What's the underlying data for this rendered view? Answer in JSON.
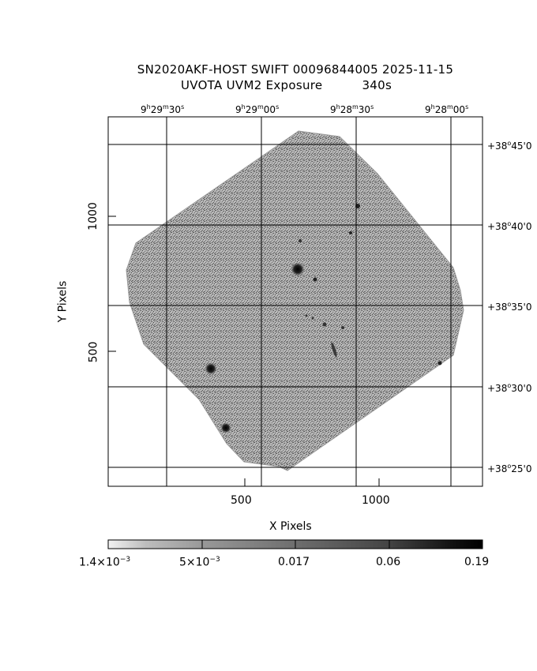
{
  "title": {
    "line1": "SN2020AKF-HOST SWIFT 00096844005 2025-11-15",
    "line2_left": "UVOTA UVM2 Exposure",
    "line2_right": "340s"
  },
  "axes": {
    "xlabel": "X Pixels",
    "ylabel": "Y Pixels",
    "x_ticks": [
      "500",
      "1000"
    ],
    "y_ticks": [
      "1000",
      "500"
    ]
  },
  "wcs": {
    "ra_labels": [
      {
        "h": "9",
        "hs": "h",
        "m": "29",
        "ms": "m",
        "s": "30",
        "ss": "s"
      },
      {
        "h": "9",
        "hs": "h",
        "m": "29",
        "ms": "m",
        "s": "00",
        "ss": "s"
      },
      {
        "h": "9",
        "hs": "h",
        "m": "28",
        "ms": "m",
        "s": "30",
        "ss": "s"
      },
      {
        "h": "9",
        "hs": "h",
        "m": "28",
        "ms": "m",
        "s": "00",
        "ss": "s"
      }
    ],
    "dec_labels": [
      {
        "d": "+38",
        "m": "45"
      },
      {
        "d": "+38",
        "m": "40"
      },
      {
        "d": "+38",
        "m": "35"
      },
      {
        "d": "+38",
        "m": "30"
      },
      {
        "d": "+38",
        "m": "25"
      }
    ]
  },
  "colorbar": {
    "ticks": [
      {
        "text": "1.4×10",
        "exp": "−3"
      },
      {
        "text": "5×10",
        "exp": "−3"
      },
      {
        "text": "0.017",
        "exp": ""
      },
      {
        "text": "0.06",
        "exp": ""
      },
      {
        "text": "0.19",
        "exp": ""
      }
    ]
  },
  "colors": {
    "image_gray": "#8c8c8c",
    "frame": "#000000"
  }
}
